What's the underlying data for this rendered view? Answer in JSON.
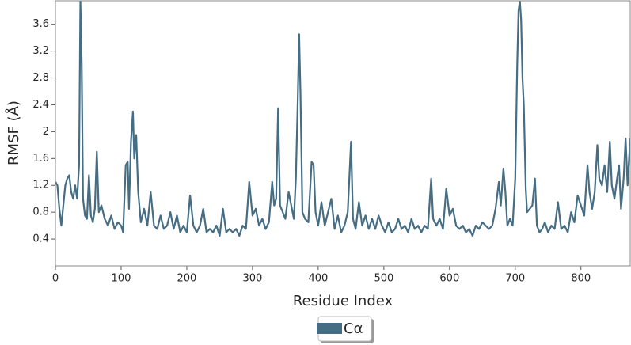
{
  "chart_data": {
    "type": "line",
    "xlabel": "Residue Index",
    "ylabel": "RMSF (Å)",
    "xlim": [
      0,
      875
    ],
    "ylim": [
      0,
      3.95
    ],
    "xticks": [
      0,
      100,
      200,
      300,
      400,
      500,
      600,
      700,
      800
    ],
    "yticks": [
      0.4,
      0.8,
      1.2,
      1.6,
      2.0,
      2.4,
      2.8,
      3.2,
      3.6
    ],
    "legend": "lower center",
    "x": [
      0,
      3,
      6,
      9,
      12,
      15,
      18,
      21,
      24,
      27,
      30,
      33,
      36,
      38,
      40,
      42,
      45,
      48,
      51,
      54,
      57,
      60,
      63,
      66,
      70,
      75,
      80,
      85,
      90,
      95,
      100,
      103,
      107,
      110,
      112,
      115,
      118,
      120,
      123,
      126,
      130,
      135,
      140,
      145,
      150,
      155,
      160,
      165,
      170,
      175,
      180,
      185,
      190,
      195,
      200,
      205,
      210,
      215,
      220,
      225,
      230,
      235,
      240,
      245,
      250,
      255,
      260,
      265,
      270,
      275,
      280,
      285,
      290,
      295,
      300,
      305,
      310,
      315,
      320,
      325,
      330,
      333,
      336,
      339,
      342,
      346,
      350,
      355,
      360,
      363,
      366,
      369,
      371,
      373,
      376,
      380,
      385,
      390,
      393,
      396,
      400,
      405,
      410,
      415,
      420,
      425,
      430,
      435,
      440,
      445,
      450,
      453,
      457,
      462,
      467,
      472,
      477,
      482,
      487,
      492,
      497,
      502,
      507,
      512,
      517,
      522,
      527,
      532,
      537,
      542,
      547,
      552,
      557,
      562,
      567,
      572,
      575,
      580,
      585,
      590,
      595,
      600,
      605,
      610,
      615,
      620,
      625,
      630,
      635,
      640,
      645,
      650,
      655,
      660,
      665,
      670,
      675,
      678,
      682,
      685,
      688,
      692,
      696,
      700,
      703,
      705,
      707,
      709,
      711,
      713,
      716,
      718,
      722,
      726,
      730,
      733,
      737,
      741,
      745,
      750,
      755,
      760,
      765,
      770,
      775,
      780,
      785,
      790,
      795,
      800,
      805,
      810,
      813,
      817,
      821,
      825,
      828,
      832,
      836,
      840,
      844,
      847,
      851,
      855,
      858,
      861,
      865,
      868,
      871,
      875
    ],
    "series": [
      {
        "name": "Cα",
        "color": "#456d83",
        "values": [
          1.25,
          1.2,
          0.85,
          0.6,
          0.9,
          1.2,
          1.3,
          1.35,
          1.1,
          1.0,
          1.2,
          1.0,
          1.5,
          3.95,
          3.0,
          1.0,
          0.75,
          0.7,
          1.35,
          0.75,
          0.65,
          0.85,
          1.7,
          0.8,
          0.9,
          0.7,
          0.6,
          0.75,
          0.55,
          0.65,
          0.6,
          0.5,
          1.5,
          1.55,
          0.85,
          1.85,
          2.3,
          1.6,
          1.95,
          1.1,
          0.65,
          0.85,
          0.6,
          1.1,
          0.6,
          0.55,
          0.75,
          0.55,
          0.6,
          0.8,
          0.55,
          0.75,
          0.5,
          0.6,
          0.5,
          1.05,
          0.6,
          0.5,
          0.6,
          0.85,
          0.5,
          0.55,
          0.5,
          0.6,
          0.45,
          0.85,
          0.5,
          0.55,
          0.5,
          0.55,
          0.45,
          0.6,
          0.55,
          1.25,
          0.75,
          0.85,
          0.6,
          0.7,
          0.55,
          0.65,
          1.25,
          0.9,
          1.0,
          2.35,
          0.9,
          0.8,
          0.7,
          1.1,
          0.85,
          0.7,
          1.3,
          2.5,
          3.45,
          2.6,
          0.8,
          0.7,
          0.65,
          1.55,
          1.5,
          0.8,
          0.6,
          0.95,
          0.6,
          0.8,
          1.0,
          0.55,
          0.75,
          0.5,
          0.6,
          0.8,
          1.85,
          0.7,
          0.55,
          0.95,
          0.6,
          0.75,
          0.55,
          0.7,
          0.55,
          0.75,
          0.6,
          0.5,
          0.65,
          0.5,
          0.55,
          0.7,
          0.55,
          0.6,
          0.5,
          0.7,
          0.55,
          0.6,
          0.5,
          0.6,
          0.55,
          1.3,
          0.7,
          0.6,
          0.7,
          0.55,
          1.15,
          0.75,
          0.85,
          0.6,
          0.55,
          0.6,
          0.5,
          0.55,
          0.45,
          0.6,
          0.55,
          0.65,
          0.6,
          0.55,
          0.6,
          0.85,
          1.25,
          0.9,
          1.45,
          1.1,
          0.6,
          0.7,
          0.6,
          1.3,
          3.0,
          3.8,
          3.95,
          3.65,
          2.8,
          2.4,
          1.15,
          0.8,
          0.85,
          0.9,
          1.3,
          0.6,
          0.5,
          0.55,
          0.65,
          0.5,
          0.6,
          0.55,
          0.95,
          0.55,
          0.6,
          0.5,
          0.8,
          0.65,
          1.05,
          0.9,
          0.75,
          1.5,
          1.1,
          0.85,
          1.1,
          1.8,
          1.3,
          1.2,
          1.5,
          1.1,
          1.85,
          1.2,
          1.0,
          1.3,
          1.5,
          0.85,
          1.3,
          1.9,
          1.2,
          1.9
        ]
      }
    ]
  }
}
